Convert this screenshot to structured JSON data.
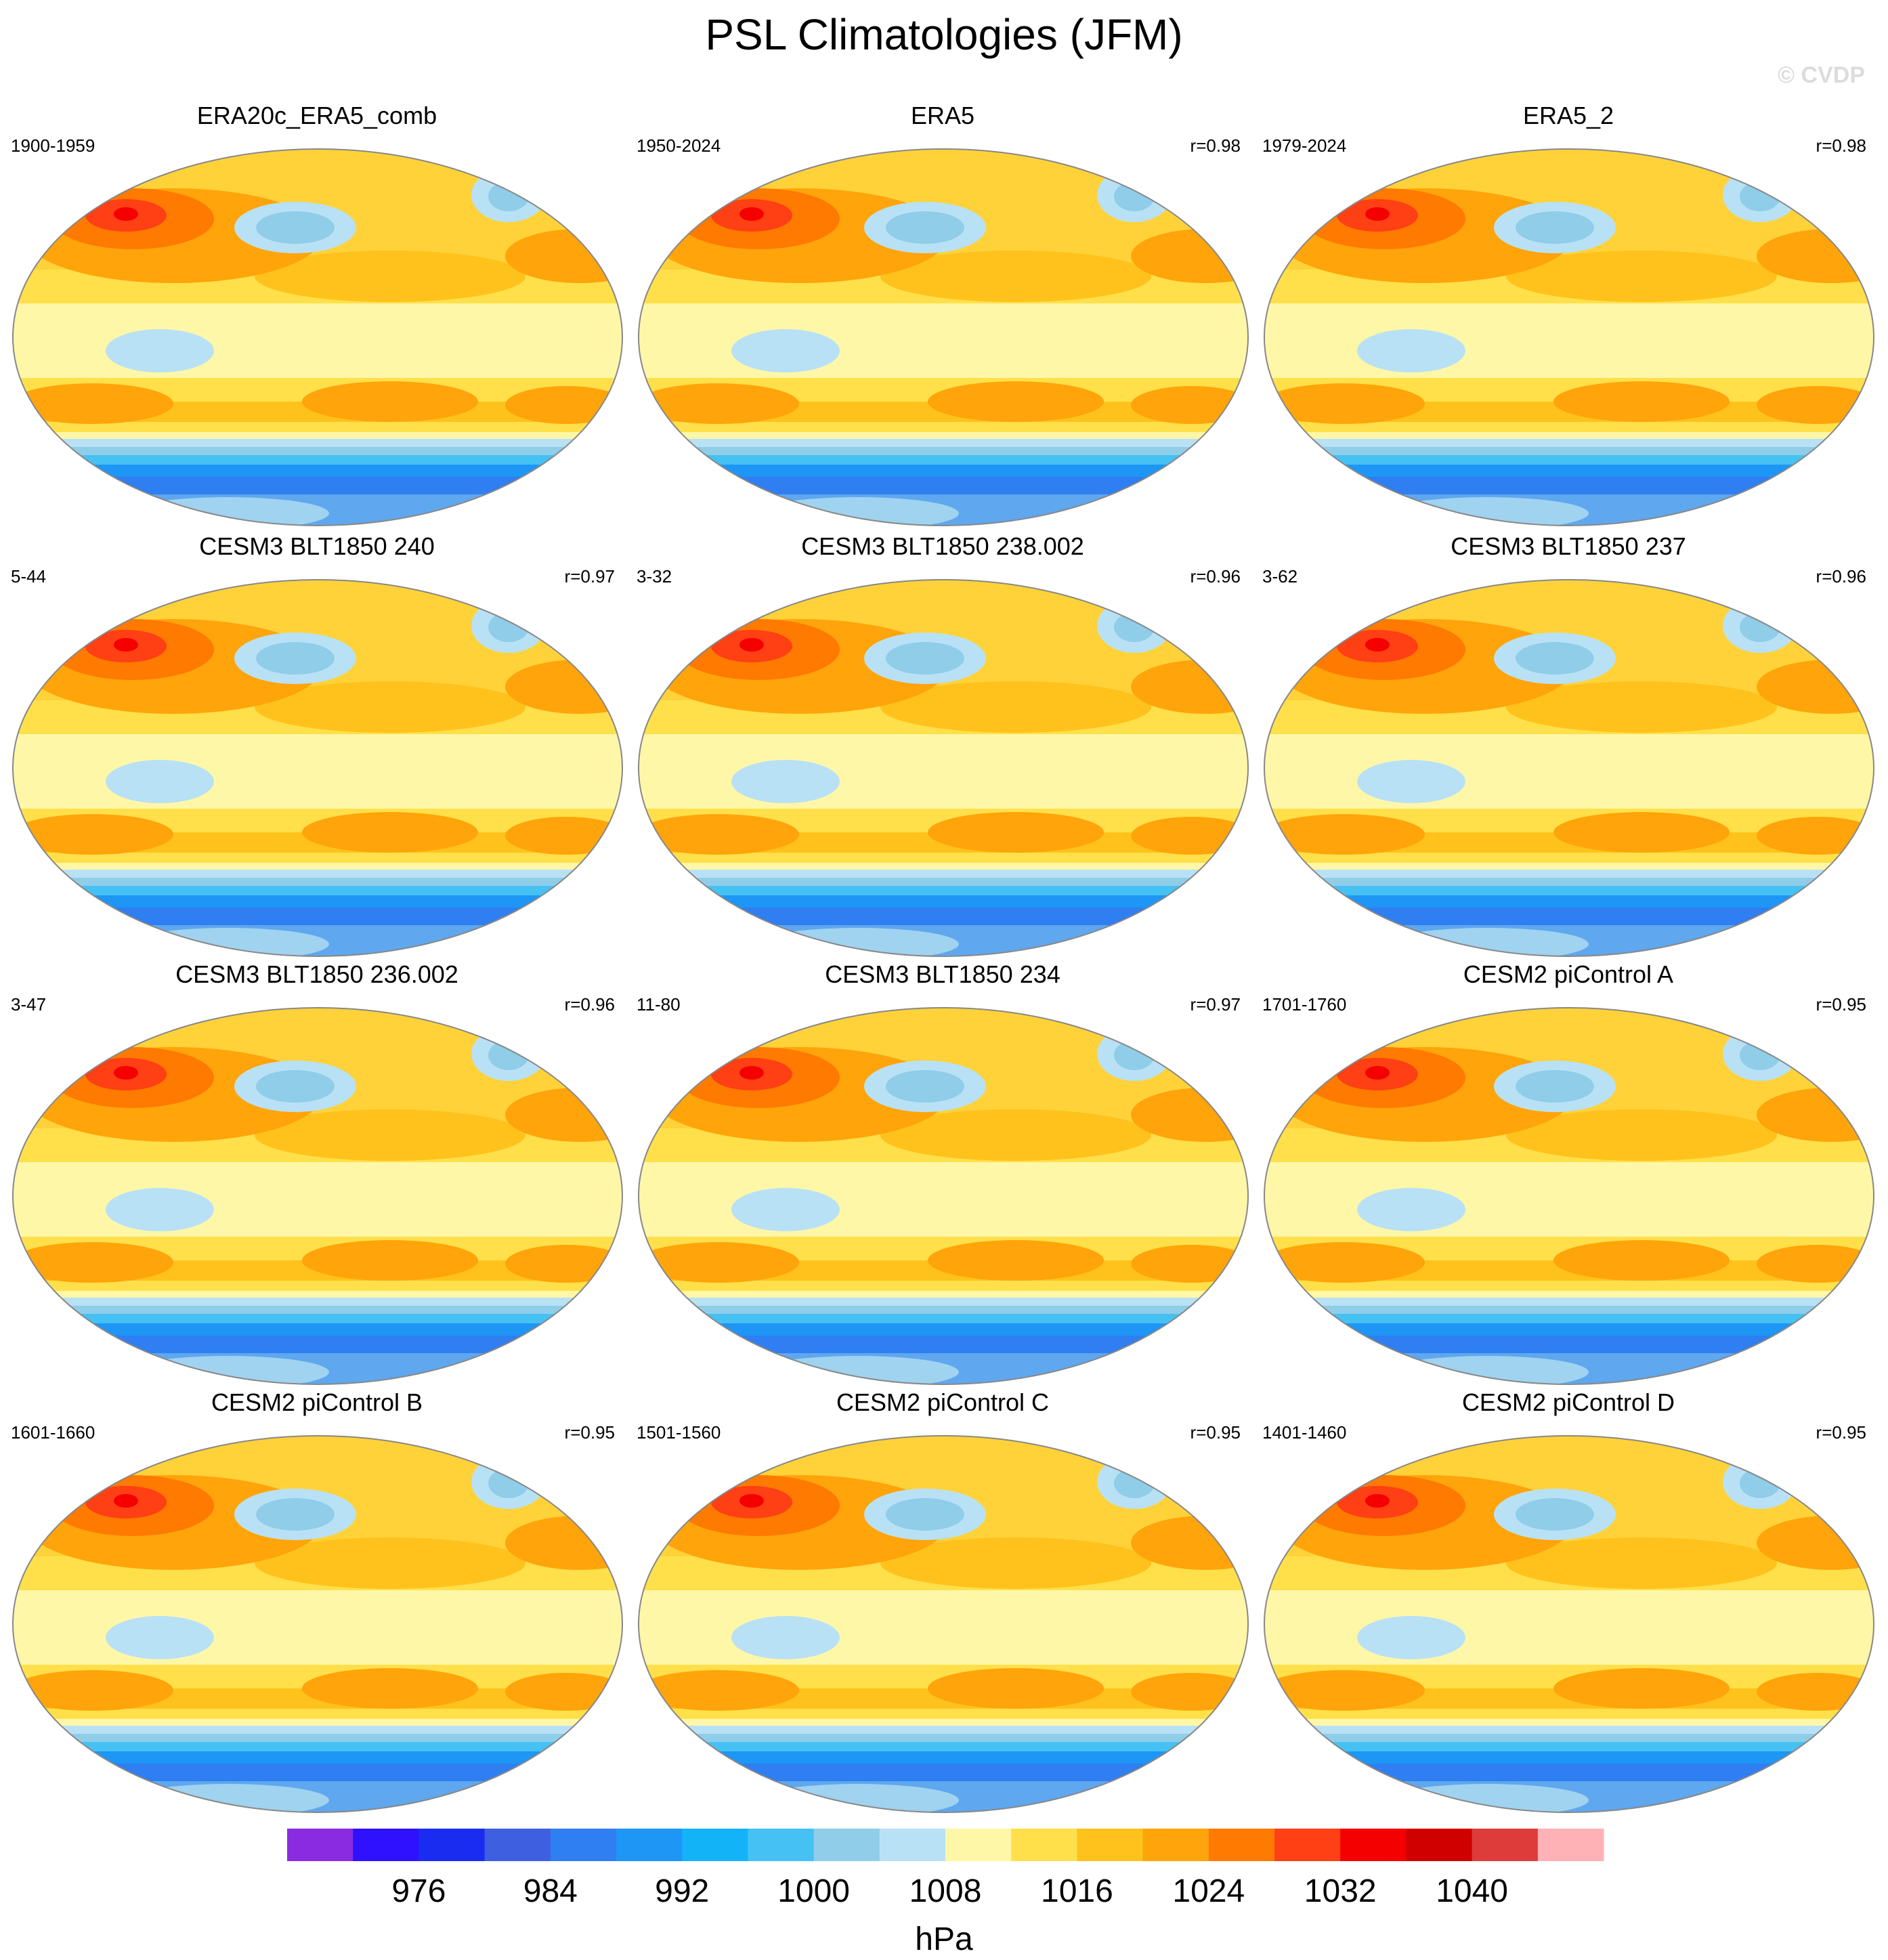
{
  "title": "PSL Climatologies (JFM)",
  "watermark": "© CVDP",
  "panels": [
    {
      "title": "ERA20c_ERA5_comb",
      "years": "1900-1959",
      "corr": ""
    },
    {
      "title": "ERA5",
      "years": "1950-2024",
      "corr": "r=0.98"
    },
    {
      "title": "ERA5_2",
      "years": "1979-2024",
      "corr": "r=0.98"
    },
    {
      "title": "CESM3 BLT1850 240",
      "years": "5-44",
      "corr": "r=0.97"
    },
    {
      "title": "CESM3 BLT1850 238.002",
      "years": "3-32",
      "corr": "r=0.96"
    },
    {
      "title": "CESM3 BLT1850 237",
      "years": "3-62",
      "corr": "r=0.96"
    },
    {
      "title": "CESM3 BLT1850 236.002",
      "years": "3-47",
      "corr": "r=0.96"
    },
    {
      "title": "CESM3 BLT1850 234",
      "years": "11-80",
      "corr": "r=0.97"
    },
    {
      "title": "CESM2 piControl A",
      "years": "1701-1760",
      "corr": "r=0.95"
    },
    {
      "title": "CESM2 piControl B",
      "years": "1601-1660",
      "corr": "r=0.95"
    },
    {
      "title": "CESM2 piControl C",
      "years": "1501-1560",
      "corr": "r=0.95"
    },
    {
      "title": "CESM2 piControl D",
      "years": "1401-1460",
      "corr": "r=0.95"
    }
  ],
  "colorbar": {
    "unit": "hPa",
    "labels": [
      "976",
      "984",
      "992",
      "1000",
      "1008",
      "1016",
      "1024",
      "1032",
      "1040"
    ],
    "colors": [
      "#8a2be2",
      "#3011ff",
      "#1a2cf0",
      "#3d5fe0",
      "#2f7ef2",
      "#1e96f5",
      "#13b3f8",
      "#45c1f3",
      "#8fcde9",
      "#b9e1f5",
      "#fff7a8",
      "#ffe04a",
      "#ffc21c",
      "#ffa40a",
      "#ff7a00",
      "#ff3f14",
      "#f50000",
      "#d10000",
      "#de3b3b",
      "#ffb2b6"
    ]
  }
}
